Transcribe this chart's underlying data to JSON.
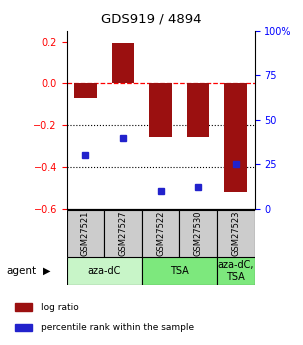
{
  "title": "GDS919 / 4894",
  "samples": [
    "GSM27521",
    "GSM27527",
    "GSM27522",
    "GSM27530",
    "GSM27523"
  ],
  "log_ratios": [
    -0.07,
    0.195,
    -0.255,
    -0.255,
    -0.52
  ],
  "percentile_ranks": [
    30,
    40,
    10,
    12,
    25
  ],
  "agents": [
    {
      "label": "aza-dC",
      "start": 0,
      "end": 2,
      "color": "#c8f5c8"
    },
    {
      "label": "TSA",
      "start": 2,
      "end": 4,
      "color": "#7de87d"
    },
    {
      "label": "aza-dC,\nTSA",
      "start": 4,
      "end": 5,
      "color": "#7de87d"
    }
  ],
  "bar_color": "#9b1010",
  "dot_color": "#2222cc",
  "left_ylim": [
    -0.6,
    0.25
  ],
  "right_ylim": [
    0,
    100
  ],
  "left_yticks": [
    -0.6,
    -0.4,
    -0.2,
    0.0,
    0.2
  ],
  "right_yticks": [
    0,
    25,
    50,
    75,
    100
  ],
  "right_yticklabels": [
    "0",
    "25",
    "50",
    "75",
    "100%"
  ],
  "hline_y": 0.0,
  "dotted_lines": [
    -0.2,
    -0.4
  ],
  "legend_items": [
    {
      "color": "#9b1010",
      "label": "log ratio"
    },
    {
      "color": "#2222cc",
      "label": "percentile rank within the sample"
    }
  ],
  "agent_label": "agent",
  "bar_width": 0.6,
  "sample_box_color": "#cccccc"
}
